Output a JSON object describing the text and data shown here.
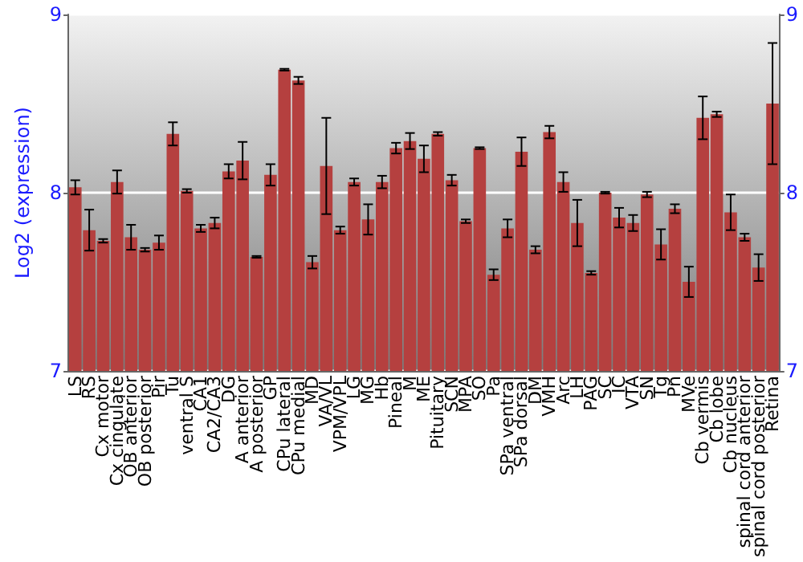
{
  "chart_data": {
    "type": "bar",
    "ylabel": "Log2 (expression)",
    "categories": [
      "LS",
      "RS",
      "Cx motor",
      "Cx cingulate",
      "OB anterior",
      "OB posterior",
      "Pir",
      "Tu",
      "ventral S",
      "CA1",
      "CA2/CA3",
      "DG",
      "A anterior",
      "A posterior",
      "GP",
      "CPu lateral",
      "CPu medial",
      "MD",
      "VA/VL",
      "VPM/VPL",
      "LG",
      "MG",
      "Hb",
      "Pineal",
      "M",
      "ME",
      "Pituitary",
      "SCN",
      "MPA",
      "SO",
      "Pa",
      "SPa ventral",
      "SPa dorsal",
      "DM",
      "VMH",
      "Arc",
      "LH",
      "PAG",
      "SC",
      "IC",
      "VTA",
      "SN",
      "Tg",
      "Pn",
      "MVe",
      "Cb vermis",
      "Cb lobe",
      "Cb nucleus",
      "spinal cord anterior",
      "spinal cord posterior",
      "Retina"
    ],
    "values": [
      8.03,
      7.79,
      7.73,
      8.06,
      7.75,
      7.68,
      7.72,
      8.33,
      8.01,
      7.8,
      7.83,
      8.12,
      8.18,
      7.64,
      8.1,
      8.69,
      8.63,
      7.61,
      8.15,
      7.79,
      8.06,
      7.85,
      8.06,
      8.25,
      8.29,
      8.19,
      8.33,
      8.07,
      7.84,
      8.25,
      7.54,
      7.8,
      8.23,
      7.68,
      8.34,
      8.06,
      7.83,
      7.55,
      8.0,
      7.86,
      7.83,
      7.99,
      7.71,
      7.91,
      7.5,
      8.42,
      8.44,
      7.89,
      7.75,
      7.58,
      8.5
    ],
    "errors": [
      0.04,
      0.115,
      0.01,
      0.065,
      0.07,
      0.01,
      0.04,
      0.065,
      0.01,
      0.02,
      0.03,
      0.04,
      0.105,
      0.005,
      0.06,
      0.005,
      0.02,
      0.035,
      0.27,
      0.02,
      0.02,
      0.085,
      0.035,
      0.03,
      0.045,
      0.075,
      0.01,
      0.03,
      0.01,
      0.005,
      0.03,
      0.05,
      0.08,
      0.02,
      0.035,
      0.055,
      0.13,
      0.01,
      0.005,
      0.055,
      0.045,
      0.015,
      0.085,
      0.025,
      0.085,
      0.12,
      0.015,
      0.1,
      0.02,
      0.075,
      0.34
    ],
    "color": "#b5403f",
    "ylim": [
      7,
      9
    ],
    "yticks": [
      7,
      8,
      9
    ],
    "y2lim": [
      7,
      9
    ],
    "y2ticks": [
      7,
      8,
      9
    ],
    "grid": "y"
  }
}
